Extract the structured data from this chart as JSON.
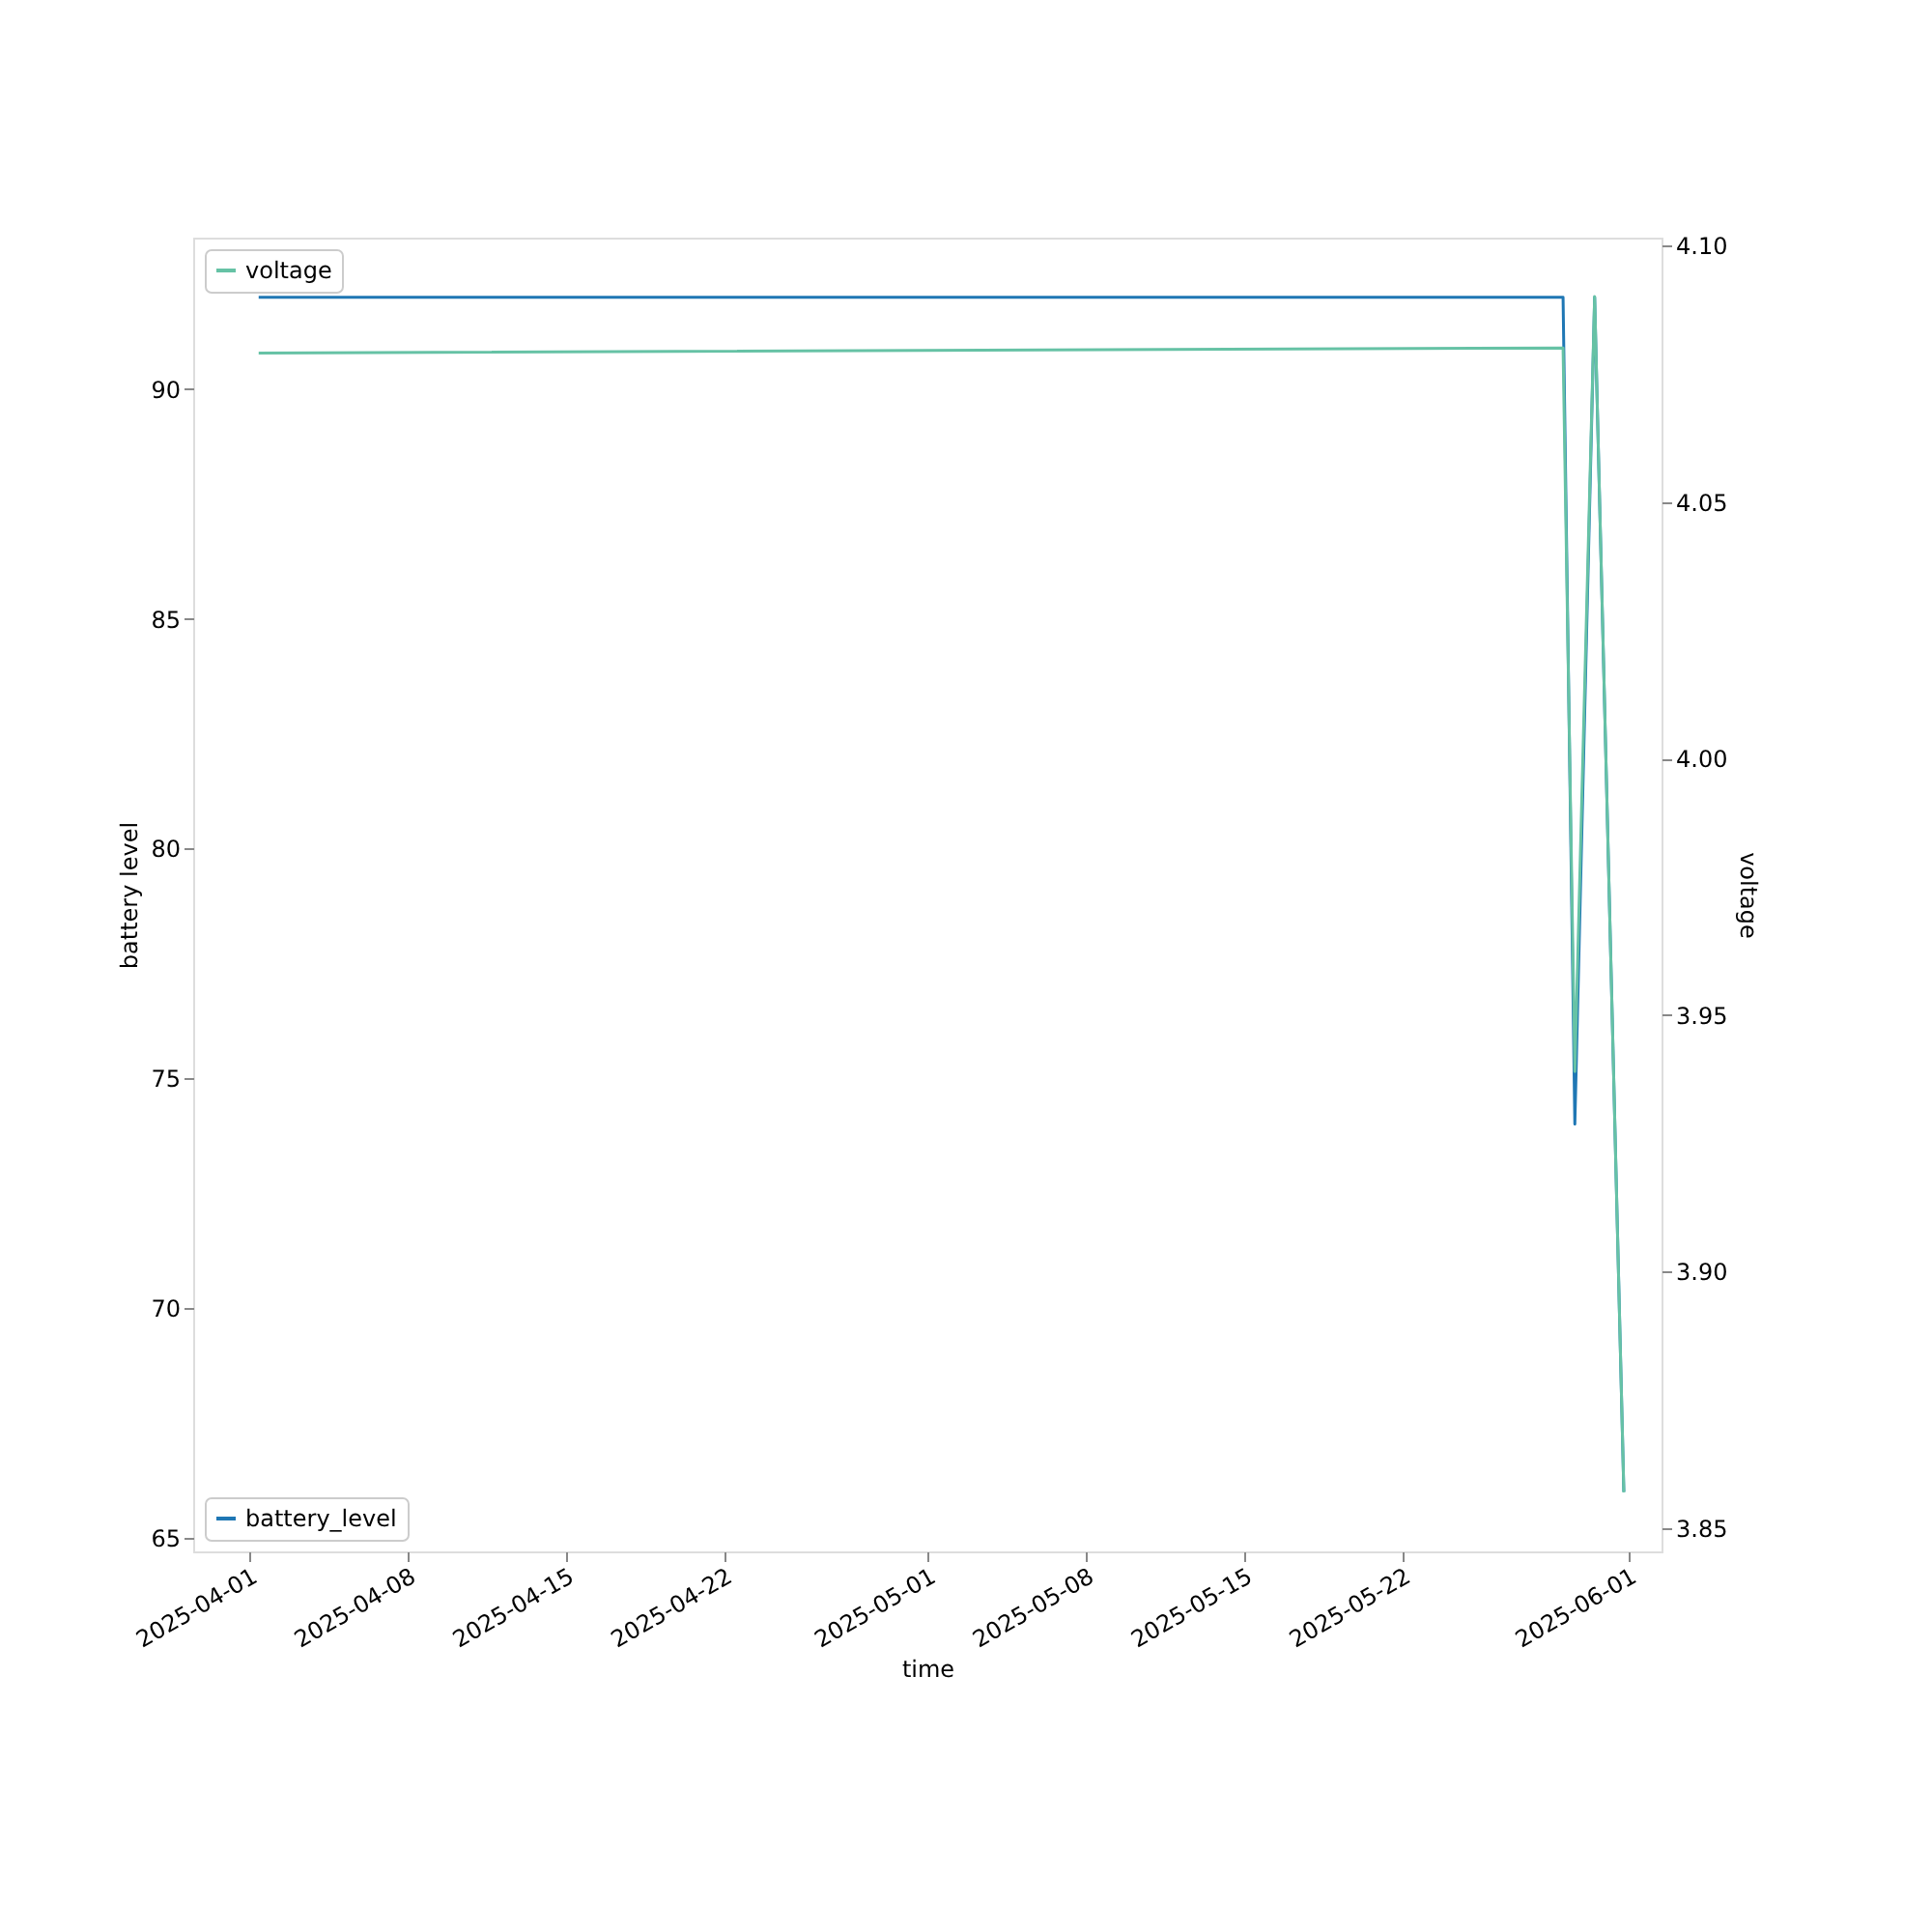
{
  "chart_data": {
    "type": "line",
    "xlabel": "time",
    "ylabel": "battery level",
    "y2label": "voltage",
    "xlim": [
      "2025-03-29T12:30",
      "2025-06-02T11:00"
    ],
    "xticks": [
      {
        "value": "2025-04-01",
        "label": "2025-04-01"
      },
      {
        "value": "2025-04-08",
        "label": "2025-04-08"
      },
      {
        "value": "2025-04-15",
        "label": "2025-04-15"
      },
      {
        "value": "2025-04-22",
        "label": "2025-04-22"
      },
      {
        "value": "2025-05-01",
        "label": "2025-05-01"
      },
      {
        "value": "2025-05-08",
        "label": "2025-05-08"
      },
      {
        "value": "2025-05-15",
        "label": "2025-05-15"
      },
      {
        "value": "2025-05-22",
        "label": "2025-05-22"
      },
      {
        "value": "2025-06-01",
        "label": "2025-06-01"
      }
    ],
    "x": [
      "2025-04-01T10:00",
      "2025-05-29T02:30",
      "2025-05-29T15:00",
      "2025-05-30T12:00",
      "2025-05-31T19:00"
    ],
    "ylim": [
      64.7,
      93.3
    ],
    "yticks": [
      65,
      70,
      75,
      80,
      85,
      90
    ],
    "y2lim": [
      3.8455,
      4.1015
    ],
    "y2ticks": [
      {
        "value": 3.85,
        "label": "3.85"
      },
      {
        "value": 3.9,
        "label": "3.90"
      },
      {
        "value": 3.95,
        "label": "3.95"
      },
      {
        "value": 4.0,
        "label": "4.00"
      },
      {
        "value": 4.05,
        "label": "4.05"
      },
      {
        "value": 4.1,
        "label": "4.10"
      }
    ],
    "grid": false,
    "legend": "bottom left",
    "series": [
      {
        "name": "battery_level",
        "color": "#1f77b4",
        "values": [
          92,
          92,
          74,
          92,
          66
        ]
      },
      {
        "name": "voltage",
        "color": "#66c2a5",
        "axis": "y2",
        "values": [
          4.079,
          4.08,
          3.939,
          4.09,
          3.857
        ]
      }
    ]
  }
}
